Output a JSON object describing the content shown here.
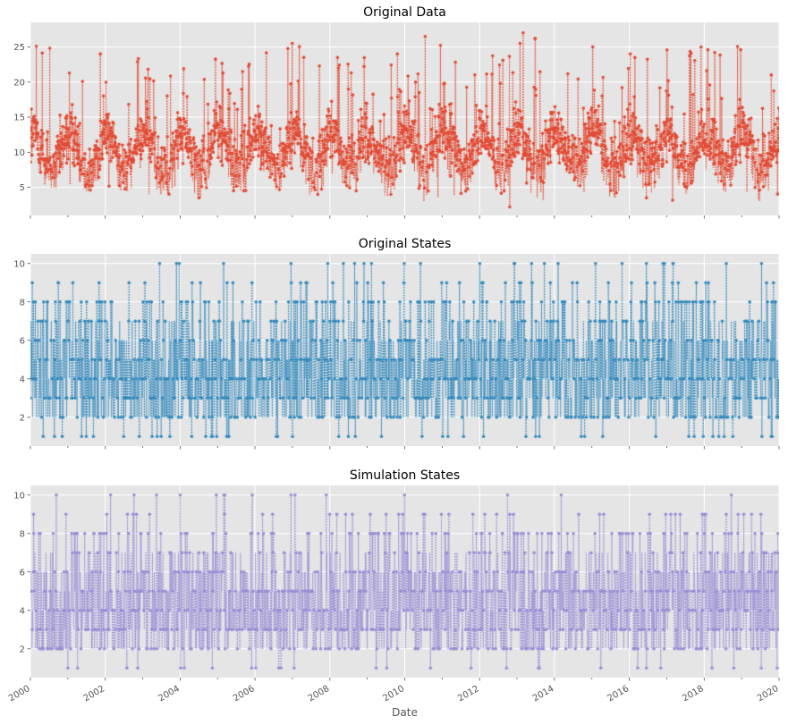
{
  "chart_data": [
    {
      "type": "line",
      "title": "Original Data",
      "xlabel": "",
      "ylabel": "",
      "xlim": [
        "2000-01-01",
        "2020-01-01"
      ],
      "ylim": [
        1,
        28.5
      ],
      "yticks": [
        5,
        10,
        15,
        20,
        25
      ],
      "grid": true,
      "line_style": "dotted",
      "marker": "circle",
      "color": "#E24A33",
      "series_profile": {
        "years": [
          2000,
          2001,
          2002,
          2003,
          2004,
          2005,
          2006,
          2007,
          2008,
          2009,
          2010,
          2011,
          2012,
          2013,
          2014,
          2015,
          2016,
          2017,
          2018,
          2019
        ],
        "min": [
          5,
          4.5,
          4.5,
          4,
          3.5,
          4.5,
          3.5,
          4,
          3.5,
          3.5,
          3,
          3,
          2,
          2,
          3,
          3.5,
          3.5,
          3,
          3,
          3
        ],
        "max": [
          25.5,
          24.5,
          23.5,
          22,
          25,
          23,
          25.5,
          25.5,
          23.5,
          24,
          26.5,
          23.5,
          24,
          27,
          26,
          25,
          24,
          25,
          25.5,
          25
        ]
      }
    },
    {
      "type": "line",
      "title": "Original States",
      "xlabel": "",
      "ylabel": "",
      "xlim": [
        "2000-01-01",
        "2020-01-01"
      ],
      "ylim": [
        0.5,
        10.5
      ],
      "yticks": [
        2,
        4,
        6,
        8,
        10
      ],
      "grid": true,
      "line_style": "dotted",
      "marker": "circle",
      "color": "#348ABD",
      "states": [
        1,
        2,
        3,
        4,
        5,
        6,
        7,
        8,
        9,
        10
      ]
    },
    {
      "type": "line",
      "title": "Simulation States",
      "xlabel": "Date",
      "ylabel": "",
      "xlim": [
        "2000-01-01",
        "2020-01-01"
      ],
      "ylim": [
        0.5,
        10.5
      ],
      "yticks": [
        2,
        4,
        6,
        8,
        10
      ],
      "xticks": [
        "2000",
        "2002",
        "2004",
        "2006",
        "2008",
        "2010",
        "2012",
        "2014",
        "2016",
        "2018",
        "2020"
      ],
      "grid": true,
      "line_style": "dotted",
      "marker": "circle",
      "color": "#988ED5",
      "states": [
        1,
        2,
        3,
        4,
        5,
        6,
        7,
        8,
        9,
        10
      ]
    }
  ]
}
